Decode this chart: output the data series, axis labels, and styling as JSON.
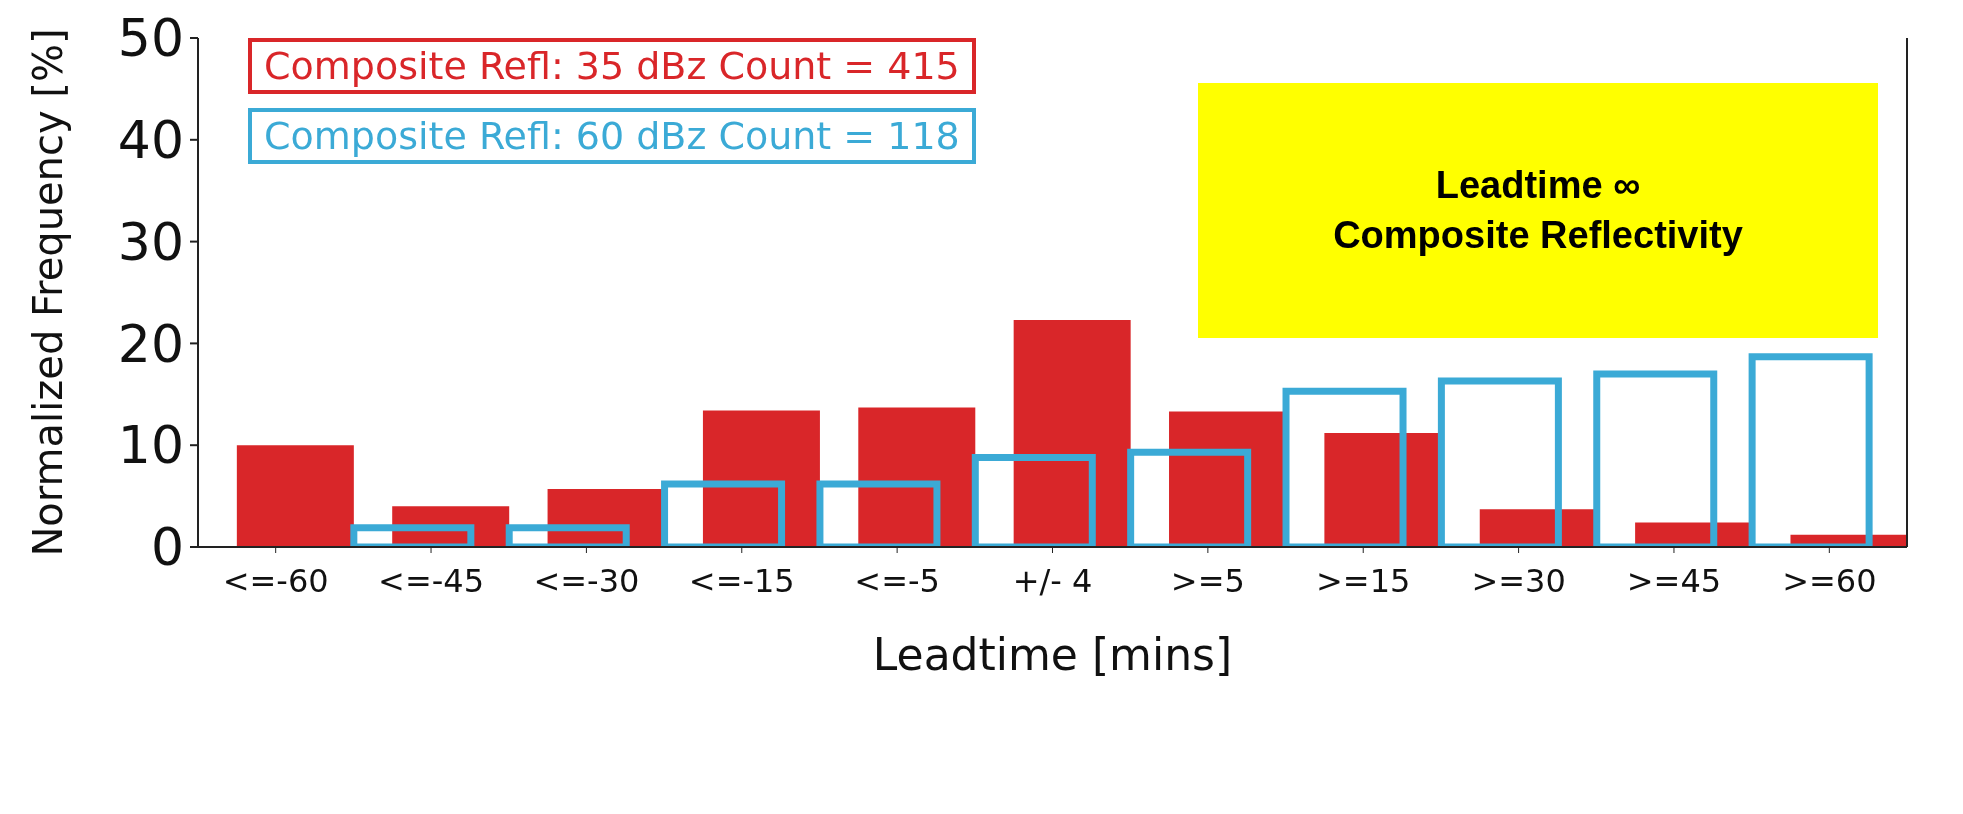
{
  "chart_data": {
    "type": "bar",
    "xlabel": "Leadtime [mins]",
    "ylabel": "Normalized Frequency [%]",
    "categories": [
      "<=-60",
      "<=-45",
      "<=-30",
      "<=-15",
      "<=-5",
      "+/- 4",
      ">=5",
      ">=15",
      ">=30",
      ">=45",
      ">=60"
    ],
    "series": [
      {
        "name": "Composite Refl: 35 dBz Count = 415",
        "color": "#d92629",
        "values": [
          10,
          4,
          5.7,
          13.4,
          13.7,
          22.3,
          13.3,
          11.2,
          3.7,
          2.4,
          1.2
        ]
      },
      {
        "name": "Composite Refl: 60 dBz Count = 118",
        "color": "#3baad6",
        "values": [
          0,
          1.9,
          1.9,
          6.2,
          6.2,
          8.8,
          9.3,
          15.3,
          16.3,
          17,
          18.7
        ]
      }
    ],
    "ylim": [
      0,
      50
    ],
    "yticks": [
      0,
      10,
      20,
      30,
      40,
      50
    ],
    "grid": false,
    "legend": "top left",
    "annotations": [
      "Leadtime ∞\nComposite Reflectivity"
    ]
  }
}
